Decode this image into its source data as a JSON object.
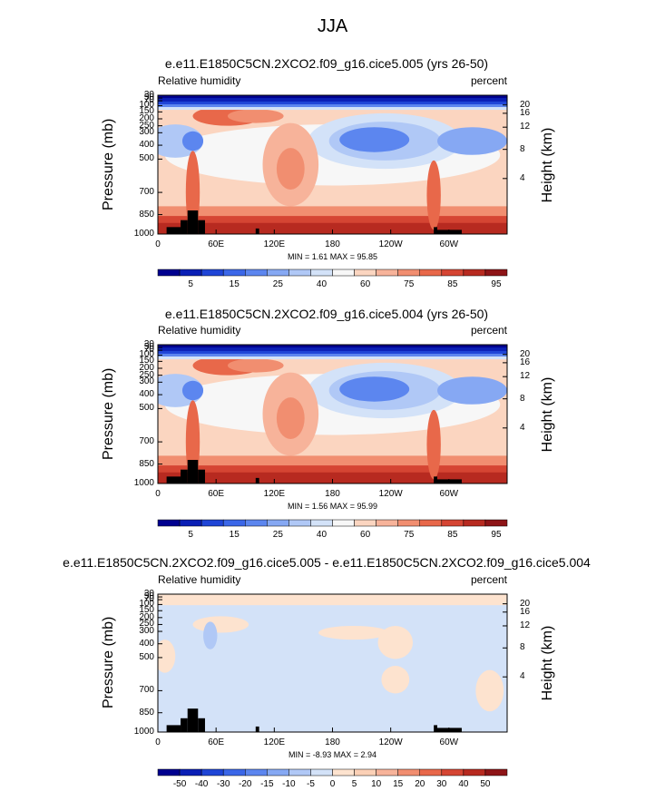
{
  "figure_title": "JJA",
  "colors": {
    "full_scale": [
      "#00008f",
      "#0a1fb5",
      "#1f45d6",
      "#3b67e8",
      "#5c86ef",
      "#86a8f3",
      "#b0c8f6",
      "#d3e2f8",
      "#f7f7f7",
      "#fbd5c0",
      "#f7b39a",
      "#f18e70",
      "#e8684a",
      "#d54533",
      "#b72a20",
      "#8e1417"
    ],
    "diff_scale": [
      "#00008f",
      "#0a1fb5",
      "#1f45d6",
      "#3b67e8",
      "#5c86ef",
      "#86a8f3",
      "#b0c8f6",
      "#d3e2f8",
      "#fde3cf",
      "#fbd0b6",
      "#f7b39a",
      "#f18e70",
      "#e8684a",
      "#d54533",
      "#b72a20",
      "#8e1417"
    ]
  },
  "chart_data": [
    {
      "type": "heatmap",
      "title": "e.e11.E1850C5CN.2XCO2.f09_g16.cice5.005 (yrs 26-50)",
      "left_label": "Relative humidity",
      "right_label": "percent",
      "ylabel": "Pressure (mb)",
      "ylabel_right": "Height (km)",
      "x_ticks": [
        "0",
        "60E",
        "120E",
        "180",
        "120W",
        "60W"
      ],
      "y_ticks": [
        "30",
        "50",
        "70",
        "100",
        "150",
        "200",
        "250",
        "300",
        "400",
        "500",
        "700",
        "850",
        "1000"
      ],
      "height_ticks": [
        "20",
        "16",
        "12",
        "8",
        "4"
      ],
      "min": "1.61",
      "max": "95.85",
      "minmax_text": "MIN =   1.61   MAX =  95.85",
      "colorbar_labels": [
        "5",
        "15",
        "25",
        "40",
        "60",
        "75",
        "85",
        "95"
      ]
    },
    {
      "type": "heatmap",
      "title": "e.e11.E1850C5CN.2XCO2.f09_g16.cice5.004 (yrs 26-50)",
      "left_label": "Relative humidity",
      "right_label": "percent",
      "ylabel": "Pressure (mb)",
      "ylabel_right": "Height (km)",
      "x_ticks": [
        "0",
        "60E",
        "120E",
        "180",
        "120W",
        "60W"
      ],
      "y_ticks": [
        "30",
        "50",
        "70",
        "100",
        "150",
        "200",
        "250",
        "300",
        "400",
        "500",
        "700",
        "850",
        "1000"
      ],
      "height_ticks": [
        "20",
        "16",
        "12",
        "8",
        "4"
      ],
      "min": "1.56",
      "max": "95.99",
      "minmax_text": "MIN =   1.56   MAX =  95.99",
      "colorbar_labels": [
        "5",
        "15",
        "25",
        "40",
        "60",
        "75",
        "85",
        "95"
      ]
    },
    {
      "type": "heatmap",
      "title": "e.e11.E1850C5CN.2XCO2.f09_g16.cice5.005 - e.e11.E1850C5CN.2XCO2.f09_g16.cice5.004",
      "left_label": "Relative humidity",
      "right_label": "percent",
      "ylabel": "Pressure (mb)",
      "ylabel_right": "Height (km)",
      "x_ticks": [
        "0",
        "60E",
        "120E",
        "180",
        "120W",
        "60W"
      ],
      "y_ticks": [
        "30",
        "50",
        "70",
        "100",
        "150",
        "200",
        "250",
        "300",
        "400",
        "500",
        "700",
        "850",
        "1000"
      ],
      "height_ticks": [
        "20",
        "16",
        "12",
        "8",
        "4"
      ],
      "min": "-8.93",
      "max": "2.94",
      "minmax_text": "MIN =  -8.93   MAX =   2.94",
      "colorbar_labels": [
        "-50",
        "-40",
        "-30",
        "-20",
        "-15",
        "-10",
        "-5",
        "0",
        "5",
        "10",
        "15",
        "20",
        "30",
        "40",
        "50"
      ]
    }
  ]
}
